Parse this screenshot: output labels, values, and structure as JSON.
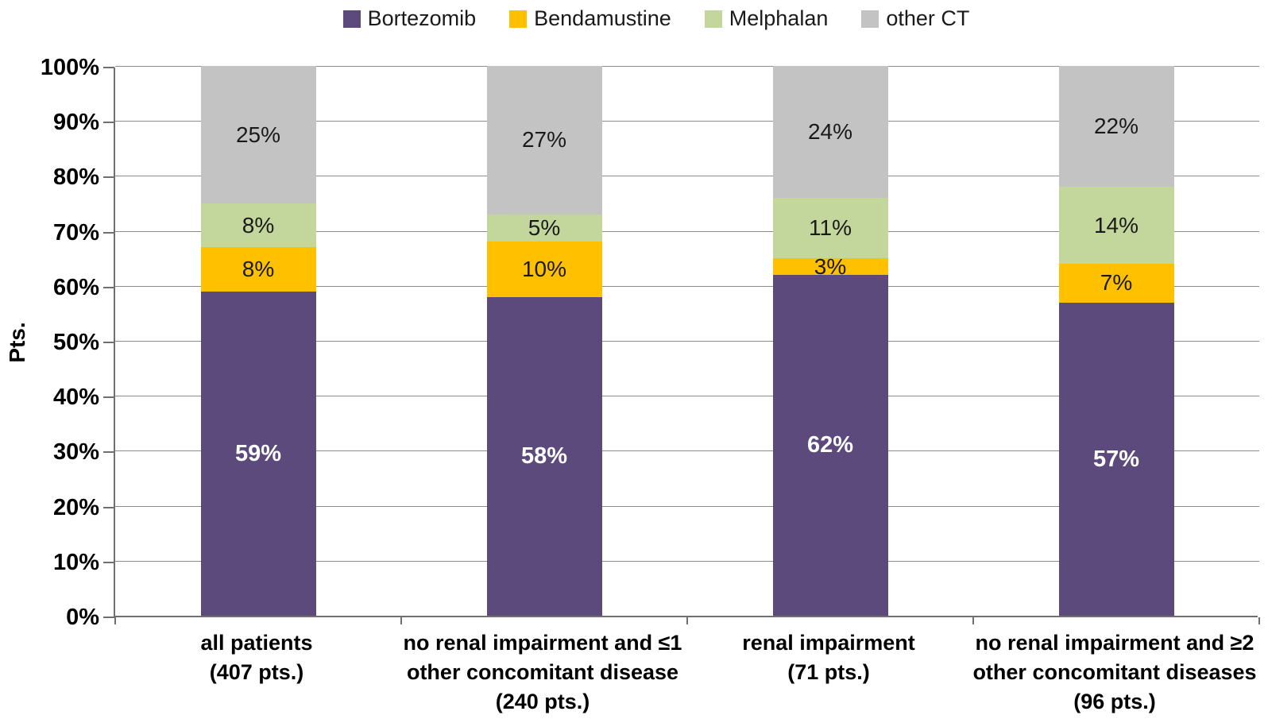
{
  "chart_data": {
    "type": "bar",
    "stacked": true,
    "title": "",
    "xlabel": "",
    "ylabel": "Pts.",
    "ylim": [
      0,
      100
    ],
    "grid": true,
    "legend_position": "top",
    "yticks": [
      {
        "label": "0%",
        "value": 0
      },
      {
        "label": "10%",
        "value": 10
      },
      {
        "label": "20%",
        "value": 20
      },
      {
        "label": "30%",
        "value": 30
      },
      {
        "label": "40%",
        "value": 40
      },
      {
        "label": "50%",
        "value": 50
      },
      {
        "label": "60%",
        "value": 60
      },
      {
        "label": "70%",
        "value": 70
      },
      {
        "label": "80%",
        "value": 80
      },
      {
        "label": "90%",
        "value": 90
      },
      {
        "label": "100%",
        "value": 100
      }
    ],
    "categories": [
      {
        "label": "all patients (407 pts.)",
        "lines": [
          "all patients",
          "(407 pts.)"
        ]
      },
      {
        "label": "no renal impairment and ≤1 other concomitant disease (240 pts.)",
        "lines": [
          "no renal impairment and ≤1",
          "other concomitant disease",
          "(240 pts.)"
        ]
      },
      {
        "label": "renal impairment (71 pts.)",
        "lines": [
          "renal impairment",
          "(71 pts.)"
        ]
      },
      {
        "label": "no renal impairment and ≥2 other concomitant diseases (96 pts.)",
        "lines": [
          "no renal impairment and ≥2",
          "other concomitant diseases",
          "(96 pts.)"
        ]
      }
    ],
    "series": [
      {
        "name": "Bortezomib",
        "color": "#5C4A7D",
        "text_color": "#FFFFFF",
        "bold_labels": true,
        "values": [
          59,
          58,
          62,
          57
        ]
      },
      {
        "name": "Bendamustine",
        "color": "#FFC000",
        "text_color": "#1A1A1A",
        "bold_labels": false,
        "values": [
          8,
          10,
          3,
          7
        ]
      },
      {
        "name": "Melphalan",
        "color": "#C3D69B",
        "text_color": "#1A1A1A",
        "bold_labels": false,
        "values": [
          8,
          5,
          11,
          14
        ]
      },
      {
        "name": "other CT",
        "color": "#C3C3C3",
        "text_color": "#1A1A1A",
        "bold_labels": false,
        "values": [
          25,
          27,
          24,
          22
        ]
      }
    ],
    "colors": {
      "gridline": "#8C8C8C",
      "axis": "#6F6F6F",
      "background": "#FFFFFF",
      "label_text": "#1A1A1A"
    }
  }
}
